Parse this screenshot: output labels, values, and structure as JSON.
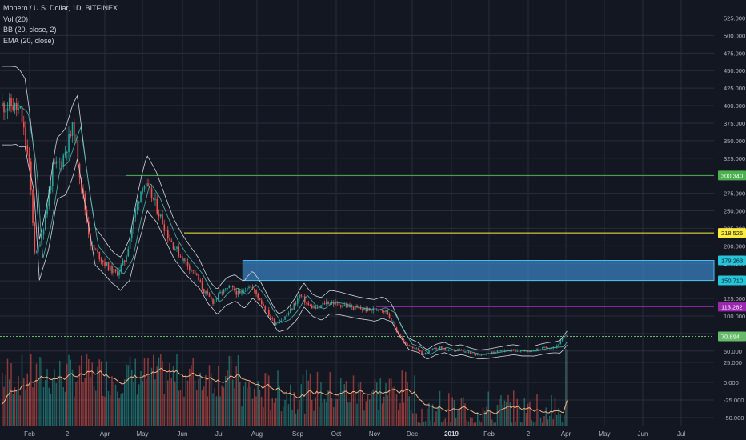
{
  "legend": {
    "symbol": "Monero / U.S. Dollar, 1D, BITFINEX",
    "vol": "Vol (20)",
    "bb": "BB (20, close, 2)",
    "ema": "EMA (20, close)"
  },
  "colors": {
    "background": "#131722",
    "grid": "#2a2e39",
    "up": "#26a69a",
    "down": "#ef5350",
    "bands": "#d1d4dc",
    "ema": "#4db6ac",
    "vol_ema": "#f5b183",
    "zone": "#3a7fbf",
    "zone_border": "#44c1f1"
  },
  "chart_data": {
    "type": "candlestick",
    "title": "Monero / U.S. Dollar, 1D, BITFINEX",
    "x_ticks": [
      "Feb",
      "2",
      "Apr",
      "May",
      "Jun",
      "Jul",
      "Aug",
      "Sep",
      "Oct",
      "Nov",
      "Dec",
      "2019",
      "Feb",
      "2",
      "Apr",
      "May",
      "Jun",
      "Jul"
    ],
    "y_ticks_price": [
      "525.000",
      "500.000",
      "475.000",
      "450.000",
      "425.000",
      "400.000",
      "375.000",
      "350.000",
      "325.000",
      "300.000",
      "275.000",
      "250.000",
      "225.000",
      "200.000",
      "175.000",
      "150.000",
      "125.000",
      "100.000",
      "75.000",
      "50.000"
    ],
    "y_ticks_volume": [
      "25.000",
      "0.000",
      "-25.000",
      "-50.000"
    ],
    "ylim": [
      35,
      525
    ],
    "close_path": [
      [
        "Jan 17",
        400
      ],
      [
        "Jan 24",
        390
      ],
      [
        "Jan 31",
        310
      ],
      [
        "Feb 5",
        180
      ],
      [
        "Feb 12",
        230
      ],
      [
        "Feb 19",
        310
      ],
      [
        "Feb 26",
        320
      ],
      [
        "Mar 5",
        370
      ],
      [
        "Mar 12",
        280
      ],
      [
        "Mar 19",
        200
      ],
      [
        "Mar 26",
        185
      ],
      [
        "Apr 2",
        170
      ],
      [
        "Apr 9",
        160
      ],
      [
        "Apr 16",
        180
      ],
      [
        "Apr 23",
        240
      ],
      [
        "Apr 30",
        290
      ],
      [
        "May 7",
        270
      ],
      [
        "May 14",
        240
      ],
      [
        "May 21",
        210
      ],
      [
        "May 28",
        190
      ],
      [
        "Jun 4",
        175
      ],
      [
        "Jun 11",
        160
      ],
      [
        "Jun 18",
        135
      ],
      [
        "Jun 25",
        120
      ],
      [
        "Jul 2",
        135
      ],
      [
        "Jul 9",
        140
      ],
      [
        "Jul 16",
        130
      ],
      [
        "Jul 23",
        145
      ],
      [
        "Jul 30",
        130
      ],
      [
        "Aug 6",
        110
      ],
      [
        "Aug 13",
        90
      ],
      [
        "Aug 20",
        95
      ],
      [
        "Aug 27",
        110
      ],
      [
        "Sep 3",
        130
      ],
      [
        "Sep 10",
        115
      ],
      [
        "Sep 17",
        110
      ],
      [
        "Sep 24",
        120
      ],
      [
        "Oct 1",
        118
      ],
      [
        "Oct 8",
        115
      ],
      [
        "Oct 15",
        112
      ],
      [
        "Oct 22",
        110
      ],
      [
        "Oct 29",
        108
      ],
      [
        "Nov 5",
        112
      ],
      [
        "Nov 12",
        105
      ],
      [
        "Nov 19",
        80
      ],
      [
        "Nov 26",
        60
      ],
      [
        "Dec 3",
        55
      ],
      [
        "Dec 10",
        45
      ],
      [
        "Dec 17",
        52
      ],
      [
        "Dec 24",
        55
      ],
      [
        "Dec 31",
        50
      ],
      [
        "Jan 7",
        52
      ],
      [
        "Jan 14",
        48
      ],
      [
        "Jan 21",
        45
      ],
      [
        "Jan 28",
        46
      ],
      [
        "Feb 4",
        48
      ],
      [
        "Feb 11",
        50
      ],
      [
        "Feb 18",
        52
      ],
      [
        "Feb 25",
        50
      ],
      [
        "Mar 4",
        50
      ],
      [
        "Mar 11",
        53
      ],
      [
        "Mar 18",
        55
      ],
      [
        "Mar 25",
        56
      ],
      [
        "Apr 1",
        70.894
      ]
    ],
    "levels": [
      {
        "value": 300.34,
        "label": "300.340",
        "color": "#4caf50",
        "text_color": "#ffffff"
      },
      {
        "value": 218.526,
        "label": "218.526",
        "color": "#ffeb3b",
        "text_color": "#131722"
      },
      {
        "value": 179.263,
        "label": "179.263",
        "color": "#26c6da",
        "text_color": "#131722"
      },
      {
        "value": 150.71,
        "label": "150.710",
        "color": "#26c6da",
        "text_color": "#131722"
      },
      {
        "value": 113.262,
        "label": "113.262",
        "color": "#9c27b0",
        "text_color": "#ffffff"
      },
      {
        "value": 70.894,
        "label": "70.894",
        "color": "#66bb6a",
        "text_color": "#ffffff"
      }
    ],
    "zone": {
      "from_date": "Jul 19",
      "top": 179.263,
      "bottom": 150.71
    }
  }
}
